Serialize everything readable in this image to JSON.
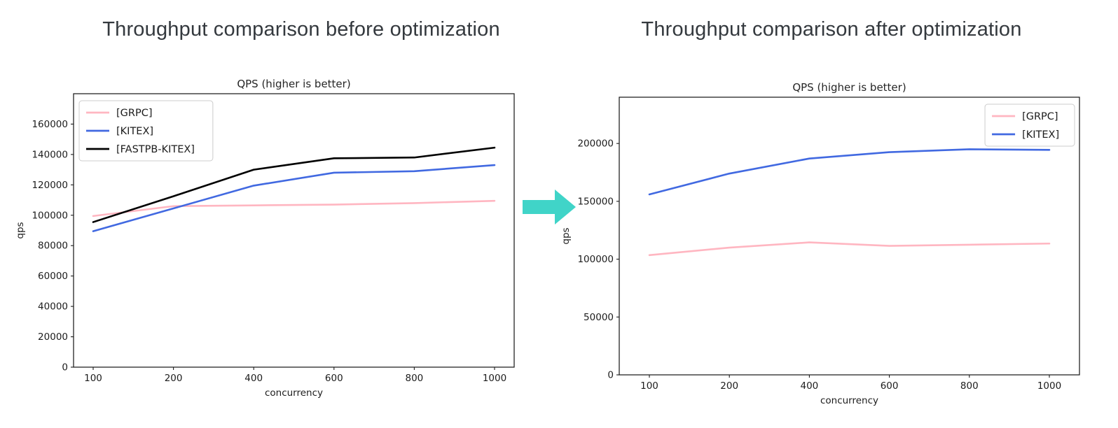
{
  "page": {
    "heading_before": "Throughput comparison before optimization",
    "heading_after": "Throughput comparison after optimization"
  },
  "arrow": {
    "color": "#40d4c8"
  },
  "colors": {
    "grpc": "#ffb6c1",
    "kitex": "#4169e1",
    "fastpb_kitex": "#000000",
    "ink": "#1c1c1c"
  },
  "chart_data": [
    {
      "id": "before",
      "type": "line",
      "title": "QPS (higher is better)",
      "xlabel": "concurrency",
      "ylabel": "qps",
      "categories": [
        "100",
        "200",
        "400",
        "600",
        "800",
        "1000"
      ],
      "ylim": [
        0,
        180000
      ],
      "yticks": [
        0,
        20000,
        40000,
        60000,
        80000,
        100000,
        120000,
        140000,
        160000
      ],
      "grid": false,
      "legend_position": "upper-left",
      "series": [
        {
          "name": "[GRPC]",
          "color": "#ffb6c1",
          "values": [
            99500,
            106000,
            106500,
            107000,
            108000,
            109500
          ]
        },
        {
          "name": "[KITEX]",
          "color": "#4169e1",
          "values": [
            89500,
            104500,
            119500,
            128000,
            129000,
            133000
          ]
        },
        {
          "name": "[FASTPB-KITEX]",
          "color": "#000000",
          "values": [
            95500,
            112500,
            130000,
            137500,
            138000,
            144500
          ]
        }
      ]
    },
    {
      "id": "after",
      "type": "line",
      "title": "QPS (higher is better)",
      "xlabel": "concurrency",
      "ylabel": "qps",
      "categories": [
        "100",
        "200",
        "400",
        "600",
        "800",
        "1000"
      ],
      "ylim": [
        0,
        240000
      ],
      "yticks": [
        0,
        50000,
        100000,
        150000,
        200000
      ],
      "grid": false,
      "legend_position": "upper-right",
      "series": [
        {
          "name": "[GRPC]",
          "color": "#ffb6c1",
          "values": [
            103500,
            110000,
            114500,
            111500,
            112500,
            113500
          ]
        },
        {
          "name": "[KITEX]",
          "color": "#4169e1",
          "values": [
            156000,
            174000,
            187000,
            192500,
            195000,
            194500
          ]
        }
      ]
    }
  ]
}
